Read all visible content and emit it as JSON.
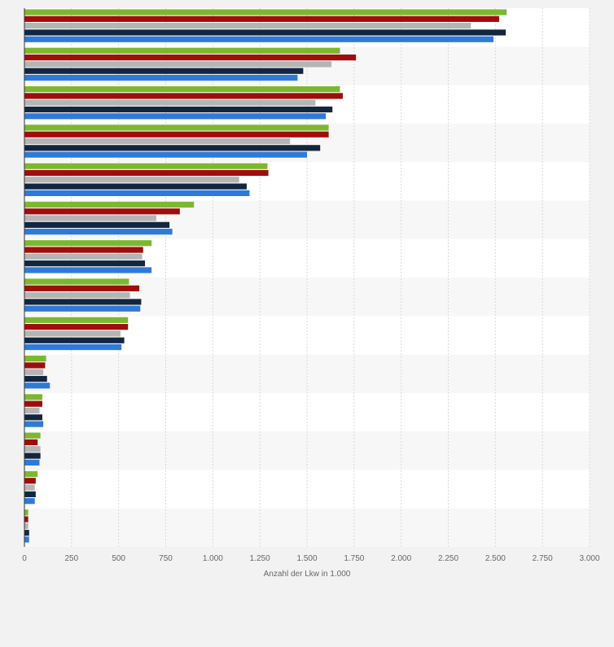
{
  "chart_data": {
    "type": "bar",
    "orientation": "horizontal",
    "xlabel": "Anzahl der Lkw in 1.000",
    "xlim": [
      0,
      3000
    ],
    "x_ticks": [
      "0",
      "250",
      "500",
      "750",
      "1.000",
      "1.250",
      "1.500",
      "1.750",
      "2.000",
      "2.250",
      "2.500",
      "2.750",
      "3.000"
    ],
    "grid": true,
    "categories": [
      "",
      "",
      "",
      "",
      "",
      "",
      "",
      "",
      "",
      "",
      "",
      "",
      "",
      ""
    ],
    "series": [
      {
        "color": "#7cb82f",
        "values": [
          2560,
          1675,
          1675,
          1615,
          1290,
          900,
          675,
          555,
          550,
          115,
          95,
          85,
          70,
          20
        ]
      },
      {
        "color": "#a00d0d",
        "values": [
          2520,
          1760,
          1690,
          1615,
          1295,
          825,
          630,
          610,
          550,
          110,
          95,
          70,
          60,
          20
        ]
      },
      {
        "color": "#b5b5b5",
        "values": [
          2370,
          1630,
          1545,
          1410,
          1140,
          700,
          625,
          560,
          510,
          100,
          80,
          85,
          55,
          20
        ]
      },
      {
        "color": "#13263f",
        "values": [
          2555,
          1480,
          1635,
          1570,
          1180,
          770,
          640,
          620,
          530,
          120,
          95,
          85,
          60,
          25
        ]
      },
      {
        "color": "#2f7ad9",
        "values": [
          2490,
          1450,
          1600,
          1500,
          1195,
          785,
          675,
          615,
          515,
          135,
          100,
          80,
          55,
          25
        ]
      }
    ]
  }
}
